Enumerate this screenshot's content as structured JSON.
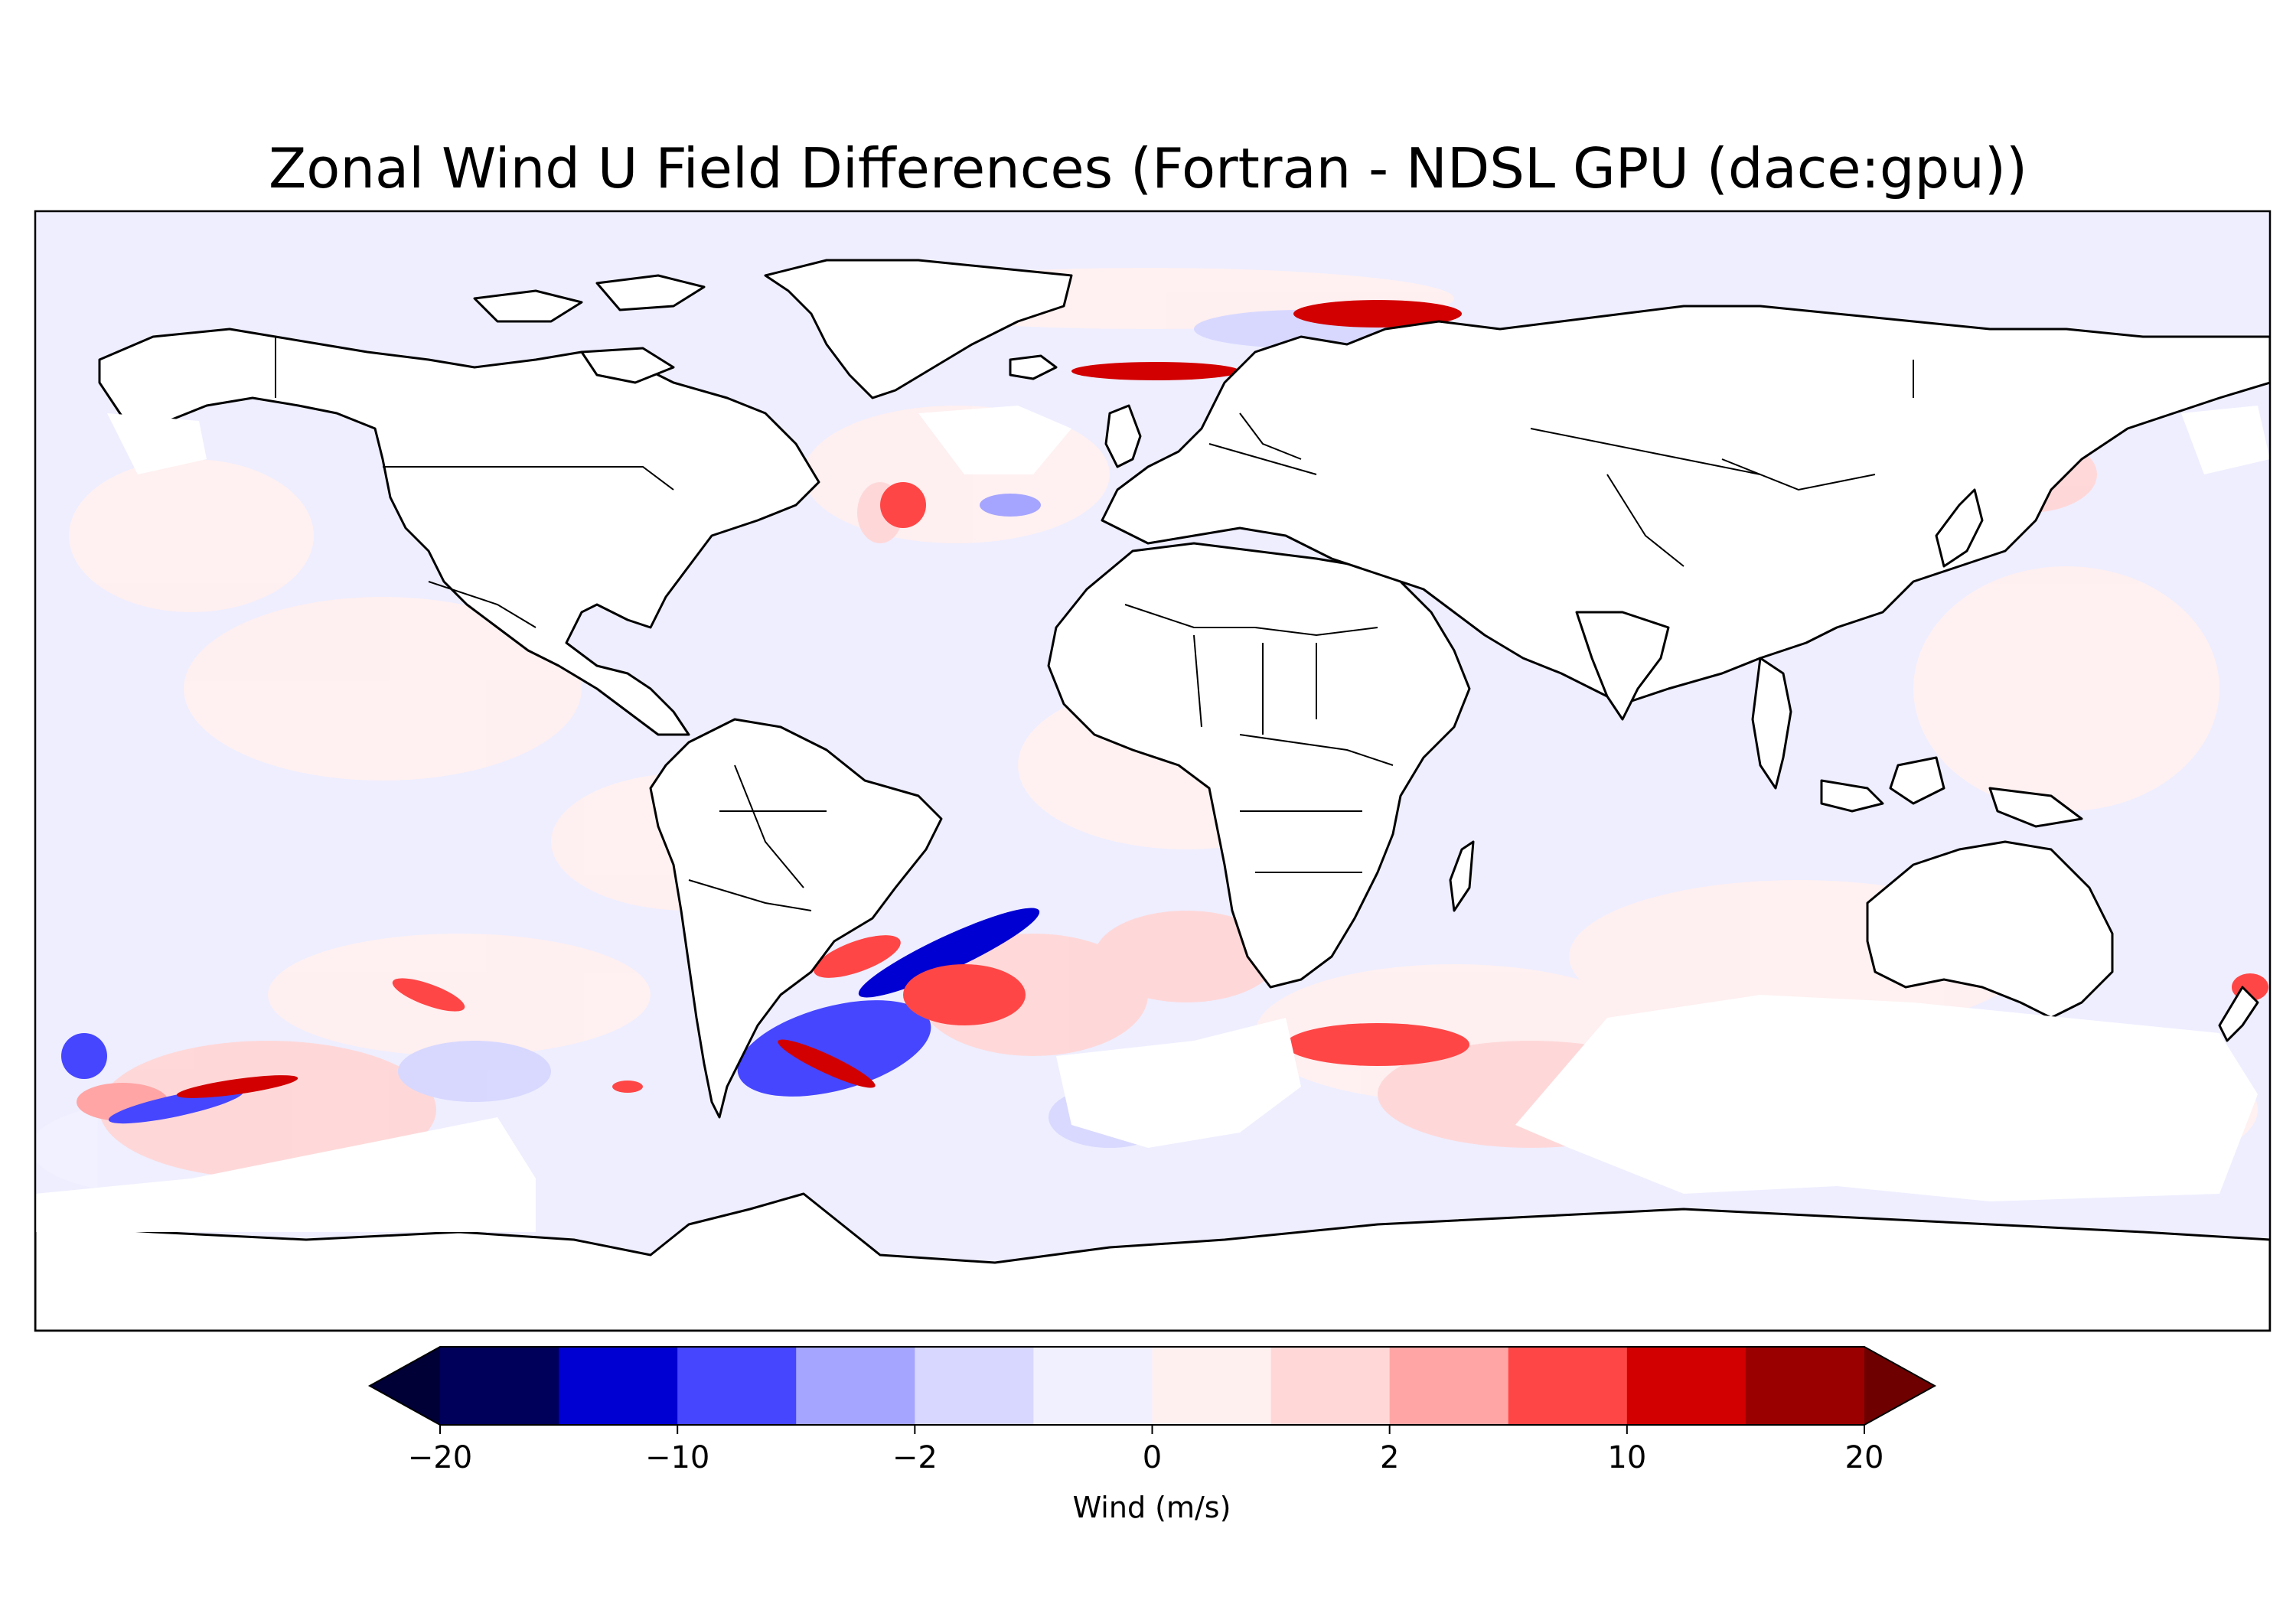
{
  "title": "Zonal Wind U Field Differences (Fortran - NDSL GPU (dace:gpu))",
  "colorbar": {
    "label": "Wind (m/s)",
    "ticks": [
      "−20",
      "−10",
      "−2",
      "0",
      "2",
      "10",
      "20"
    ],
    "tick_boundaries": [
      -20,
      -10,
      -2,
      0,
      2,
      10,
      20
    ],
    "boundaries": [
      -20,
      -15,
      -10,
      -5,
      -2,
      -1,
      0,
      1,
      2,
      5,
      10,
      15,
      20
    ],
    "colors": [
      "#00005a",
      "#0000d2",
      "#4646ff",
      "#a5a5ff",
      "#d7d7ff",
      "#f0f0ff",
      "#fff0f0",
      "#ffd7d7",
      "#ffa5a5",
      "#ff4646",
      "#d20000",
      "#9b0000"
    ],
    "under_color": "#000037",
    "over_color": "#6e0000",
    "extend": "both"
  },
  "map": {
    "projection": "PlateCarree",
    "background_color": "#eeeeff",
    "coastline_color": "#000000",
    "features": [
      "coastlines",
      "borders"
    ],
    "ticks_visible": false
  }
}
